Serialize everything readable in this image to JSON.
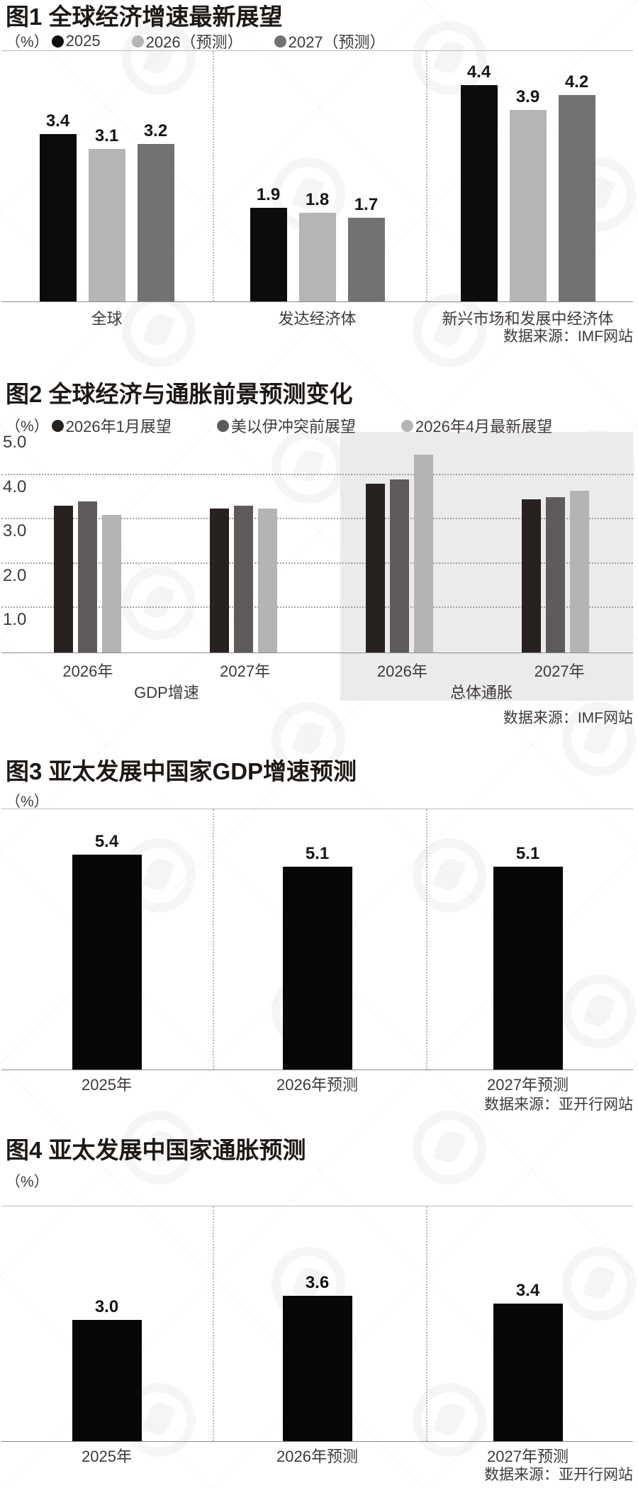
{
  "chart_data": [
    {
      "id": "fig1",
      "type": "bar",
      "title": "图1 全球经济增速最新展望",
      "unit": "（%）",
      "legend": [
        "2025",
        "2026（预测）",
        "2027（预测）"
      ],
      "series_colors": [
        "#0c0c0c",
        "#b5b5b6",
        "#737273"
      ],
      "categories": [
        "全球",
        "发达经济体",
        "新兴市场和发展中经济体"
      ],
      "series": [
        {
          "name": "2025",
          "values": [
            3.4,
            1.9,
            4.4
          ]
        },
        {
          "name": "2026（预测）",
          "values": [
            3.1,
            1.8,
            3.9
          ]
        },
        {
          "name": "2027（预测）",
          "values": [
            3.2,
            1.7,
            4.2
          ]
        }
      ],
      "show_values": true,
      "ylim": [
        0,
        5.09
      ],
      "grid": false,
      "source": "数据来源：IMF网站"
    },
    {
      "id": "fig2",
      "type": "bar",
      "title": "图2 全球经济与通胀前景预测变化",
      "unit": "（%）",
      "legend": [
        "2026年1月展望",
        "美以伊冲突前展望",
        "2026年4月最新展望"
      ],
      "series_colors": [
        "#272120",
        "#5e5b5a",
        "#b5b4b5"
      ],
      "categories": [
        "2026年",
        "2027年",
        "2026年",
        "2027年"
      ],
      "axis_groups": [
        {
          "label": "GDP增速",
          "highlight": false
        },
        {
          "label": "总体通胀",
          "highlight": true
        }
      ],
      "highlight_color": "#ecebeb",
      "series": [
        {
          "name": "2026年1月展望",
          "values": [
            3.3,
            3.25,
            3.8,
            3.45
          ]
        },
        {
          "name": "美以伊冲突前展望",
          "values": [
            3.4,
            3.3,
            3.9,
            3.5
          ]
        },
        {
          "name": "2026年4月最新展望",
          "values": [
            3.1,
            3.25,
            4.45,
            3.65
          ]
        }
      ],
      "show_values": false,
      "ylim": [
        0,
        5.0
      ],
      "yticks": [
        1.0,
        2.0,
        3.0,
        4.0,
        5.0
      ],
      "grid": true,
      "source": "数据来源：IMF网站"
    },
    {
      "id": "fig3",
      "type": "bar",
      "title": "图3 亚太发展中国家GDP增速预测",
      "unit": "（%）",
      "bar_color": "#070707",
      "categories": [
        "2025年",
        "2026年预测",
        "2027年预测"
      ],
      "values": [
        5.4,
        5.1,
        5.1
      ],
      "show_values": true,
      "ylim": [
        0,
        6.54
      ],
      "grid": false,
      "source": "数据来源：亚开行网站"
    },
    {
      "id": "fig4",
      "type": "bar",
      "title": "图4 亚太发展中国家通胀预测",
      "unit": "（%）",
      "bar_color": "#070707",
      "categories": [
        "2025年",
        "2026年预测",
        "2027年预测"
      ],
      "values": [
        3.0,
        3.6,
        3.4
      ],
      "show_values": true,
      "ylim": [
        0,
        5.8
      ],
      "grid": false,
      "source": "数据来源：亚开行网站"
    }
  ]
}
